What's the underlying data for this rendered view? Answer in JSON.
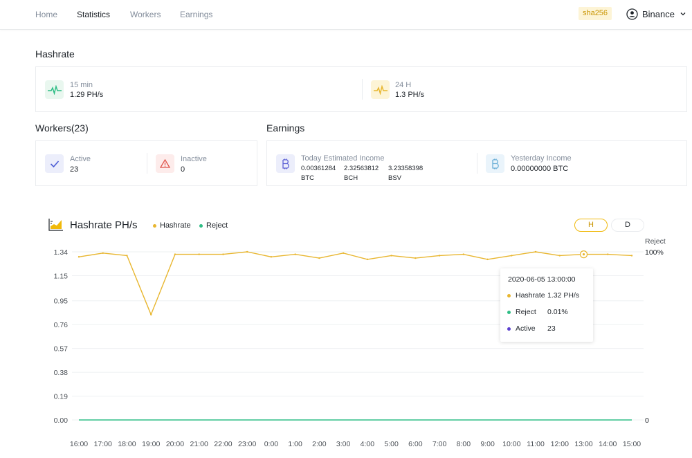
{
  "nav": {
    "items": [
      {
        "label": "Home",
        "active": false
      },
      {
        "label": "Statistics",
        "active": true
      },
      {
        "label": "Workers",
        "active": false
      },
      {
        "label": "Earnings",
        "active": false
      }
    ],
    "algorithm": "sha256",
    "account": "Binance"
  },
  "hashrate": {
    "title": "Hashrate",
    "m15_label": "15 min",
    "m15_value": "1.29 PH/s",
    "h24_label": "24 H",
    "h24_value": "1.3 PH/s"
  },
  "workers": {
    "title": "Workers(23)",
    "active_label": "Active",
    "active_value": "23",
    "inactive_label": "Inactive",
    "inactive_value": "0"
  },
  "earnings": {
    "title": "Earnings",
    "today_label": "Today Estimated Income",
    "today": [
      {
        "amount": "0.00361284",
        "coin": "BTC"
      },
      {
        "amount": "2.32563812",
        "coin": "BCH"
      },
      {
        "amount": "3.23358398",
        "coin": "BSV"
      }
    ],
    "yesterday_label": "Yesterday Income",
    "yesterday_value": "0.00000000 BTC"
  },
  "chart": {
    "title": "Hashrate PH/s",
    "legend": [
      {
        "name": "Hashrate",
        "color": "#e8b62f"
      },
      {
        "name": "Reject",
        "color": "#2ebd85"
      }
    ],
    "toggle_h": "H",
    "toggle_d": "D",
    "right_axis_label": "Reject",
    "right_top": "100%",
    "right_bottom": "0",
    "tooltip": {
      "time": "2020-06-05  13:00:00",
      "rows": [
        {
          "key": "Hashrate",
          "value": "1.32 PH/s",
          "color": "#e8b62f"
        },
        {
          "key": "Reject",
          "value": "0.01%",
          "color": "#2ebd85"
        },
        {
          "key": "Active",
          "value": "23",
          "color": "#5b3fcf"
        }
      ]
    }
  },
  "chart_data": {
    "type": "line",
    "x": [
      "16:00",
      "17:00",
      "18:00",
      "19:00",
      "20:00",
      "21:00",
      "22:00",
      "23:00",
      "0:00",
      "1:00",
      "2:00",
      "3:00",
      "4:00",
      "5:00",
      "6:00",
      "7:00",
      "8:00",
      "9:00",
      "10:00",
      "11:00",
      "12:00",
      "13:00",
      "14:00",
      "15:00"
    ],
    "series": [
      {
        "name": "Hashrate",
        "axis": "left",
        "values": [
          1.3,
          1.33,
          1.31,
          0.84,
          1.32,
          1.32,
          1.32,
          1.34,
          1.3,
          1.32,
          1.29,
          1.33,
          1.28,
          1.31,
          1.29,
          1.31,
          1.32,
          1.28,
          1.31,
          1.34,
          1.31,
          1.32,
          1.32,
          1.31
        ]
      },
      {
        "name": "Reject",
        "axis": "right",
        "values": [
          0,
          0,
          0,
          0,
          0,
          0,
          0,
          0,
          0,
          0,
          0,
          0,
          0,
          0,
          0,
          0,
          0,
          0,
          0,
          0,
          0,
          0,
          0,
          0
        ]
      }
    ],
    "yticks": [
      0.0,
      0.19,
      0.38,
      0.57,
      0.76,
      0.95,
      1.15,
      1.34
    ],
    "ylim": [
      0,
      1.34
    ],
    "y2lim": [
      0,
      100
    ],
    "highlight_index": 21,
    "grid": true,
    "legend_position": "top-left"
  }
}
